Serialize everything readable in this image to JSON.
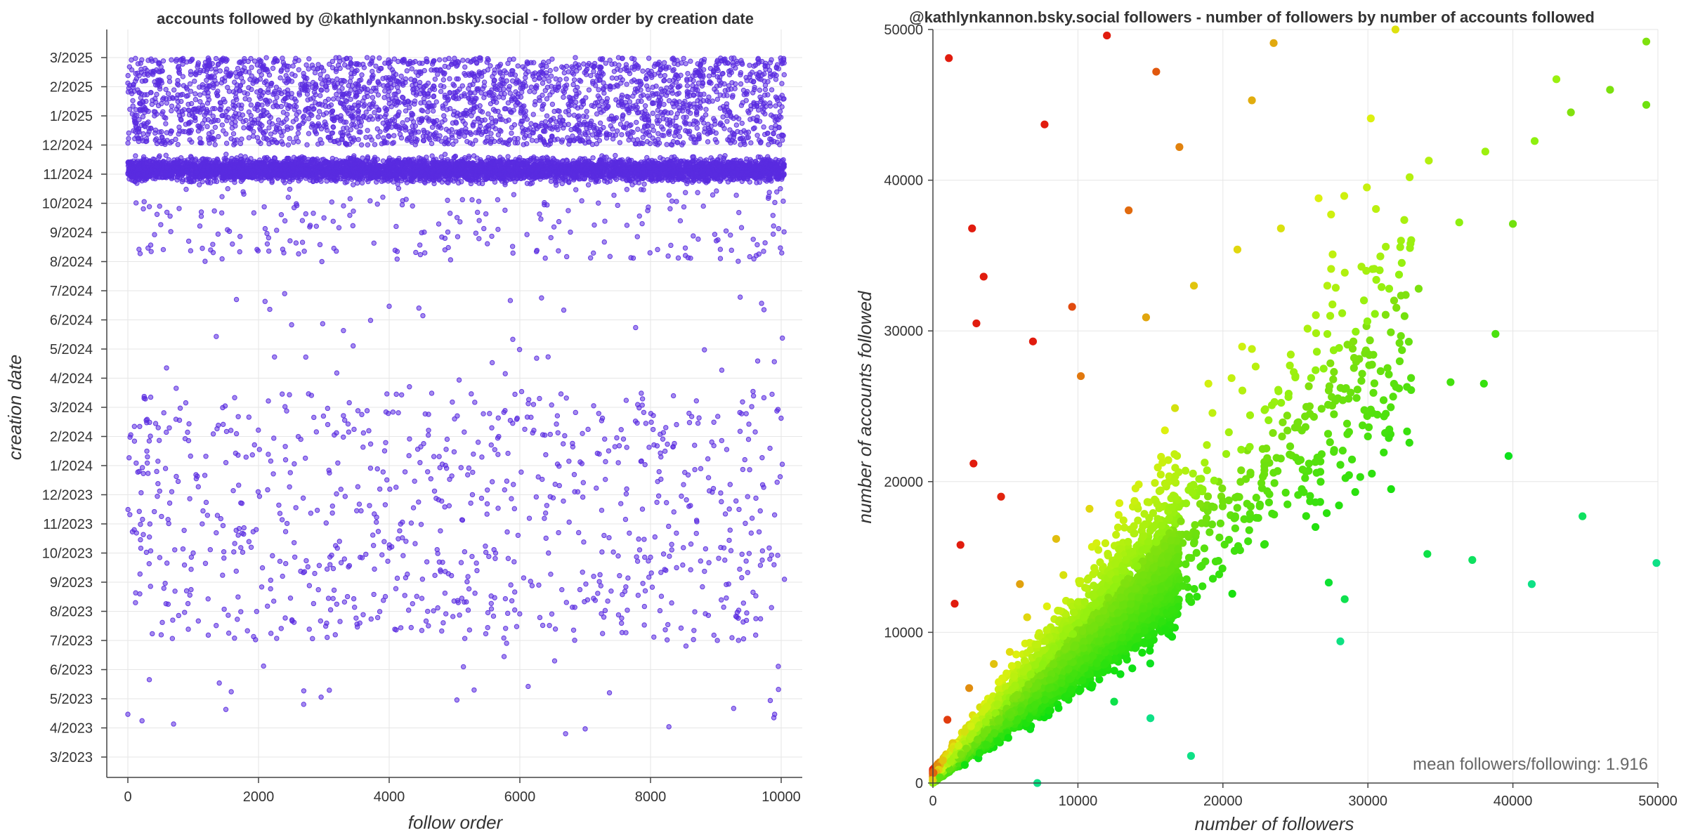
{
  "chart_data": [
    {
      "type": "scatter",
      "title": "accounts followed by @kathlynkannon.bsky.social - follow order by creation date",
      "xlabel": "follow order",
      "ylabel": "creation date",
      "x_ticks": [
        "0",
        "2000",
        "4000",
        "6000",
        "8000",
        "10000"
      ],
      "xlim": [
        0,
        10000
      ],
      "y_ticks": [
        "3/2025",
        "2/2025",
        "1/2025",
        "12/2024",
        "11/2024",
        "10/2024",
        "9/2024",
        "8/2024",
        "7/2024",
        "6/2024",
        "5/2024",
        "4/2024",
        "3/2024",
        "2/2024",
        "1/2024",
        "12/2023",
        "11/2023",
        "10/2023",
        "9/2023",
        "8/2023",
        "7/2023",
        "6/2023",
        "5/2023",
        "4/2023",
        "3/2023"
      ],
      "ylim": [
        "2023-03",
        "2025-03"
      ],
      "color": "#5a2be0",
      "grid": true,
      "series": [
        {
          "points": [
            [
              0,
              "2023-04-15"
            ],
            [
              120,
              "2023-08-20"
            ],
            [
              300,
              "2024-01-10"
            ],
            [
              700,
              "2023-04-05"
            ],
            [
              1500,
              "2023-04-20"
            ],
            [
              2100,
              "2024-06-20"
            ],
            [
              2400,
              "2024-06-28"
            ],
            [
              3300,
              "2024-05-20"
            ],
            [
              4000,
              "2024-06-15"
            ],
            [
              5300,
              "2023-05-10"
            ],
            [
              6700,
              "2023-03-25"
            ],
            [
              7000,
              "2023-03-30"
            ],
            [
              7700,
              "2024-08-05"
            ],
            [
              9700,
              "2024-06-18"
            ],
            [
              9900,
              "2023-04-15"
            ],
            [
              1000,
              "2023-10-01"
            ],
            [
              2800,
              "2023-11-12"
            ],
            [
              3600,
              "2024-01-20"
            ],
            [
              4700,
              "2023-09-08"
            ],
            [
              5800,
              "2023-12-15"
            ],
            [
              6900,
              "2023-10-22"
            ],
            [
              8200,
              "2023-09-30"
            ],
            [
              8900,
              "2023-12-05"
            ],
            [
              9500,
              "2024-01-28"
            ],
            [
              10050,
              "2023-09-04"
            ]
          ]
        }
      ]
    },
    {
      "type": "scatter",
      "title": "@kathlynkannon.bsky.social followers - number of followers by number of accounts followed",
      "xlabel": "number of followers",
      "ylabel": "number of accounts followed",
      "x_ticks": [
        "0",
        "10000",
        "20000",
        "30000",
        "40000",
        "50000"
      ],
      "y_ticks": [
        "0",
        "10000",
        "20000",
        "30000",
        "40000",
        "50000"
      ],
      "xlim": [
        0,
        50000
      ],
      "ylim": [
        0,
        50000
      ],
      "colormap": "follower/following ratio: red (low) to green/teal (high)",
      "grid": true,
      "annotation": "mean followers/following: 1.916",
      "series": [
        {
          "points": [
            [
              1100,
              48100
            ],
            [
              2700,
              36800
            ],
            [
              3500,
              33600
            ],
            [
              7700,
              43700
            ],
            [
              12000,
              49600
            ],
            [
              15400,
              47200
            ],
            [
              23500,
              49100
            ],
            [
              31900,
              50000
            ],
            [
              9600,
              31600
            ],
            [
              13500,
              38000
            ],
            [
              17000,
              42200
            ],
            [
              22000,
              45300
            ],
            [
              26600,
              38800
            ],
            [
              30200,
              44100
            ],
            [
              34200,
              41300
            ],
            [
              38100,
              41900
            ],
            [
              41500,
              42600
            ],
            [
              44000,
              44500
            ],
            [
              46700,
              46000
            ],
            [
              49200,
              49200
            ],
            [
              49200,
              45000
            ],
            [
              43000,
              46700
            ],
            [
              38800,
              29800
            ],
            [
              35700,
              26600
            ],
            [
              29000,
              29300
            ],
            [
              27400,
              31000
            ],
            [
              21000,
              19000
            ],
            [
              24600,
              21800
            ],
            [
              31600,
              19500
            ],
            [
              38000,
              26500
            ],
            [
              39700,
              21700
            ],
            [
              44800,
              17700
            ],
            [
              49900,
              14600
            ],
            [
              41300,
              13200
            ],
            [
              37200,
              14800
            ],
            [
              34100,
              15200
            ],
            [
              27300,
              13300
            ],
            [
              28400,
              12200
            ],
            [
              28100,
              9400
            ],
            [
              17800,
              1800
            ],
            [
              7200,
              0
            ],
            [
              5300,
              8700
            ],
            [
              12500,
              5400
            ],
            [
              15000,
              4300
            ],
            [
              1500,
              11900
            ],
            [
              1900,
              15800
            ],
            [
              2800,
              21200
            ],
            [
              4700,
              19000
            ],
            [
              6000,
              13200
            ],
            [
              8500,
              16200
            ],
            [
              10800,
              18200
            ],
            [
              13300,
              14800
            ],
            [
              16000,
              23400
            ],
            [
              19000,
              26500
            ],
            [
              22000,
              28800
            ],
            [
              25000,
              27000
            ],
            [
              30000,
              23000
            ],
            [
              3000,
              30500
            ],
            [
              6900,
              29300
            ],
            [
              10200,
              27000
            ],
            [
              14700,
              30900
            ],
            [
              18000,
              33000
            ],
            [
              21000,
              35400
            ],
            [
              24000,
              36800
            ],
            [
              27200,
              33000
            ],
            [
              32900,
              35500
            ],
            [
              36300,
              37200
            ],
            [
              40000,
              37100
            ],
            [
              1000,
              4200
            ],
            [
              2500,
              6300
            ],
            [
              4200,
              7900
            ],
            [
              6500,
              11000
            ],
            [
              9000,
              13800
            ],
            [
              11500,
              10900
            ],
            [
              14500,
              13800
            ],
            [
              17500,
              16500
            ],
            [
              20000,
              18700
            ],
            [
              23000,
              22200
            ],
            [
              26000,
              24500
            ],
            [
              30100,
              28400
            ],
            [
              33500,
              32800
            ],
            [
              2200,
              1200
            ],
            [
              5200,
              3000
            ],
            [
              8000,
              4800
            ],
            [
              11000,
              6500
            ],
            [
              14000,
              9000
            ],
            [
              16500,
              11500
            ],
            [
              19500,
              14700
            ],
            [
              22300,
              17600
            ],
            [
              25500,
              20800
            ],
            [
              28700,
              23300
            ]
          ]
        }
      ]
    }
  ]
}
